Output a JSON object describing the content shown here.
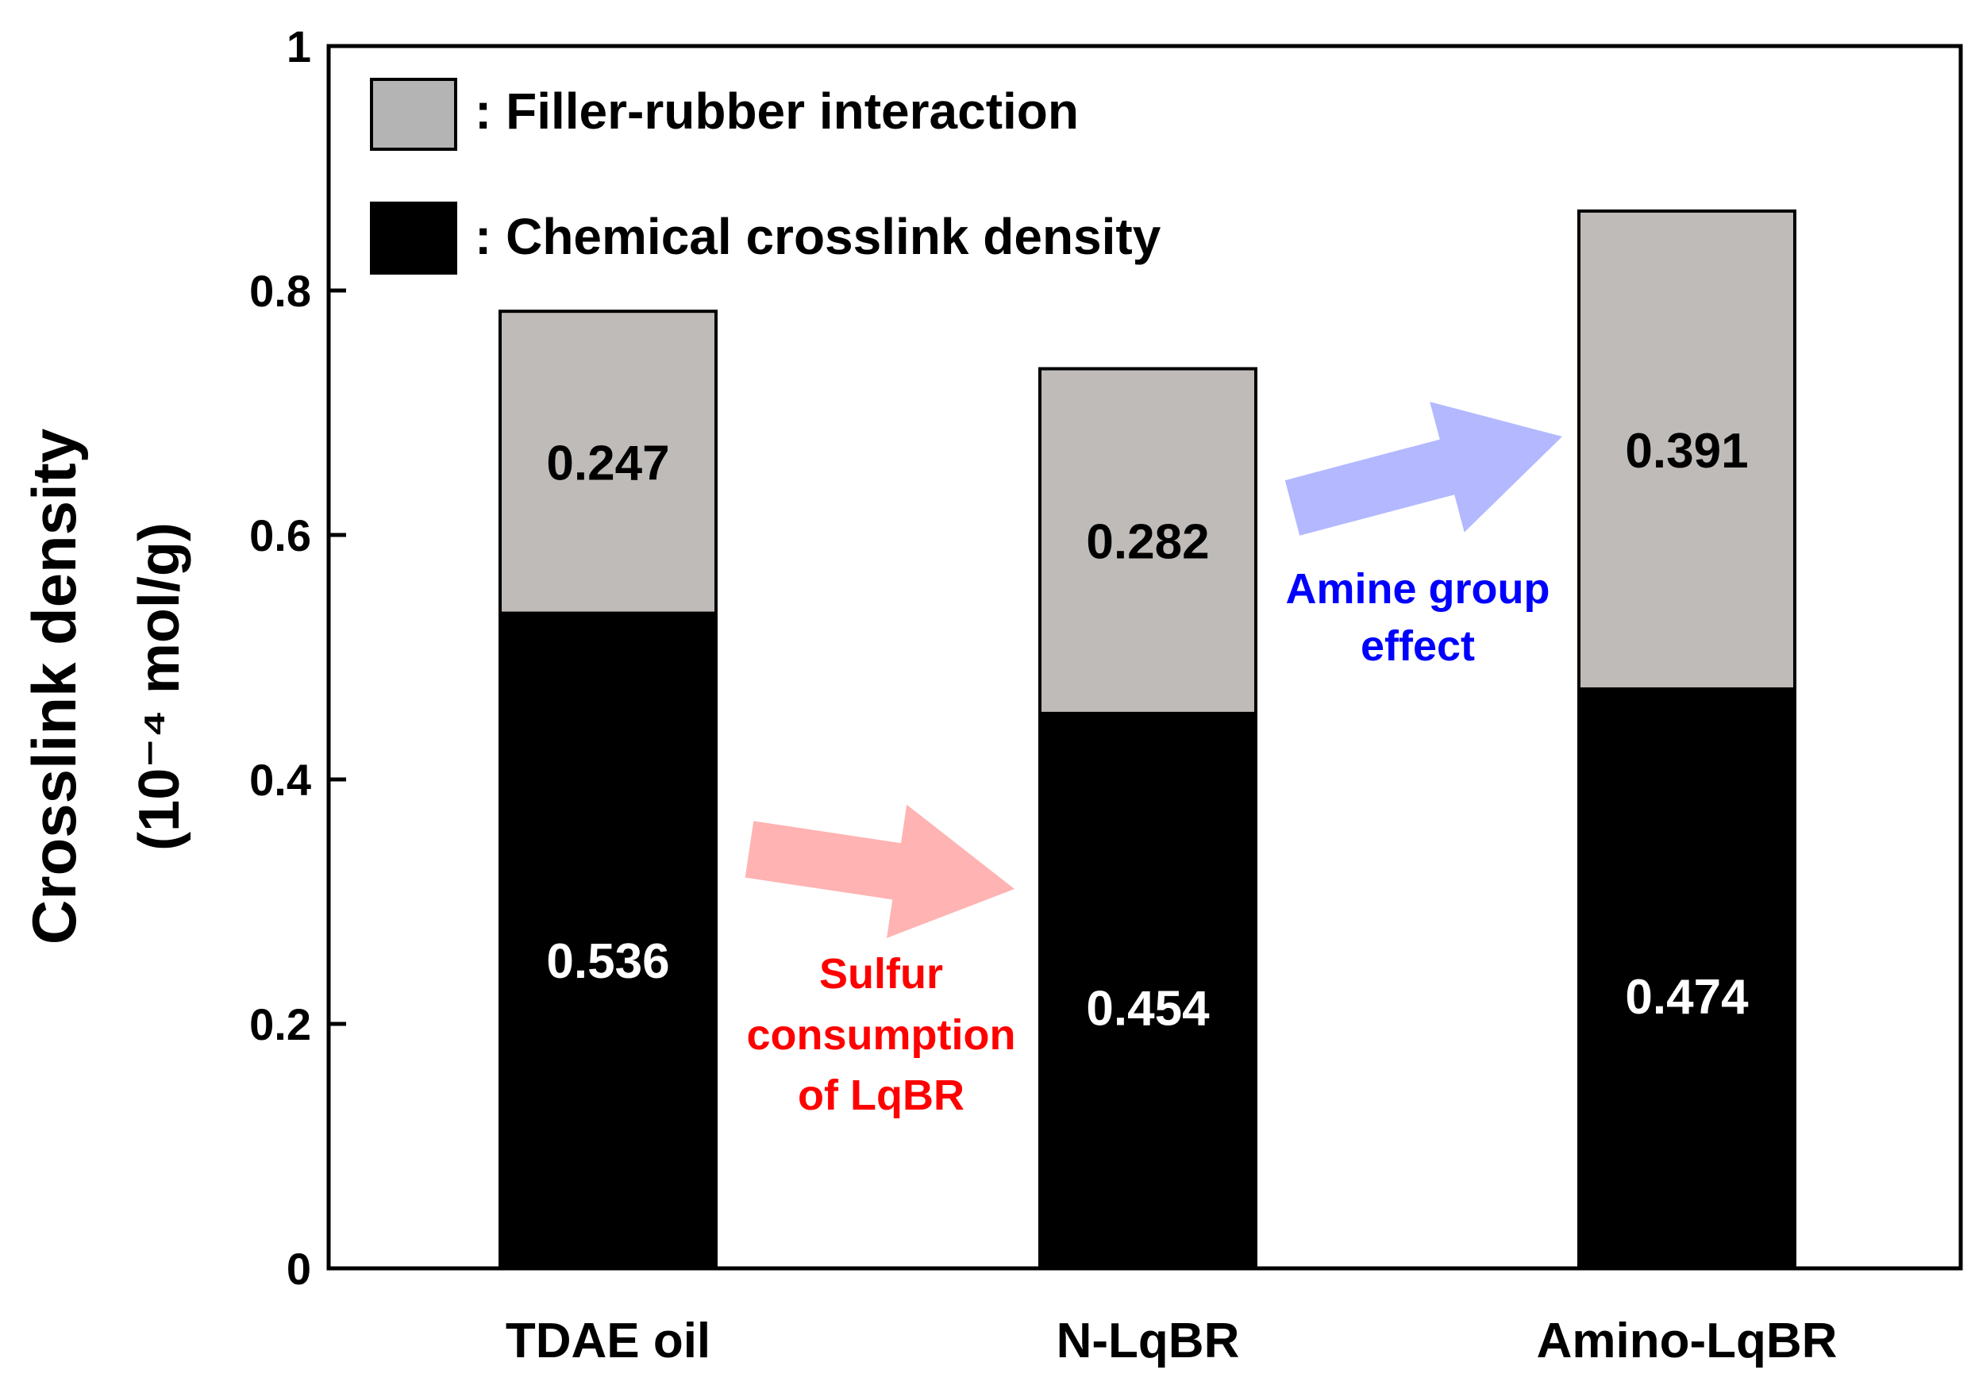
{
  "chart_data": {
    "type": "bar",
    "stacked": true,
    "title": "",
    "xlabel": "",
    "ylabel_line1": "Crosslink density",
    "ylabel_line2": "(10⁻⁴ mol/g)",
    "ylim": [
      0,
      1
    ],
    "yticks": [
      {
        "value": 0,
        "label": "0"
      },
      {
        "value": 0.2,
        "label": "0.2"
      },
      {
        "value": 0.4,
        "label": "0.4"
      },
      {
        "value": 0.6,
        "label": "0.6"
      },
      {
        "value": 0.8,
        "label": "0.8"
      },
      {
        "value": 1,
        "label": "1"
      }
    ],
    "categories": [
      "TDAE oil",
      "N-LqBR",
      "Amino-LqBR"
    ],
    "series": [
      {
        "name": "Chemical crosslink density",
        "color": "#000000",
        "label_color": "#ffffff",
        "values": [
          0.536,
          0.454,
          0.474
        ],
        "value_labels": [
          "0.536",
          "0.454",
          "0.474"
        ]
      },
      {
        "name": "Filler-rubber interaction",
        "color": "#bfbbb8",
        "label_color": "#000000",
        "values": [
          0.247,
          0.282,
          0.391
        ],
        "value_labels": [
          "0.247",
          "0.282",
          "0.391"
        ]
      }
    ],
    "legend": {
      "position": "top-left",
      "items": [
        {
          "label": ": Filler-rubber interaction",
          "color": "#b4b4b4"
        },
        {
          "label": ": Chemical crosslink density",
          "color": "#000000"
        }
      ]
    },
    "annotations": [
      {
        "id": "sulfur",
        "from_category": "TDAE oil",
        "to_category": "N-LqBR",
        "lines": [
          "Sulfur",
          "consumption",
          "of LqBR"
        ],
        "text_color": "#ff0000",
        "arrow_color": "#ffb3b3"
      },
      {
        "id": "amine",
        "from_category": "N-LqBR",
        "to_category": "Amino-LqBR",
        "lines": [
          "Amine  group",
          "effect"
        ],
        "text_color": "#0000ff",
        "arrow_color": "#b3b8ff"
      }
    ]
  }
}
